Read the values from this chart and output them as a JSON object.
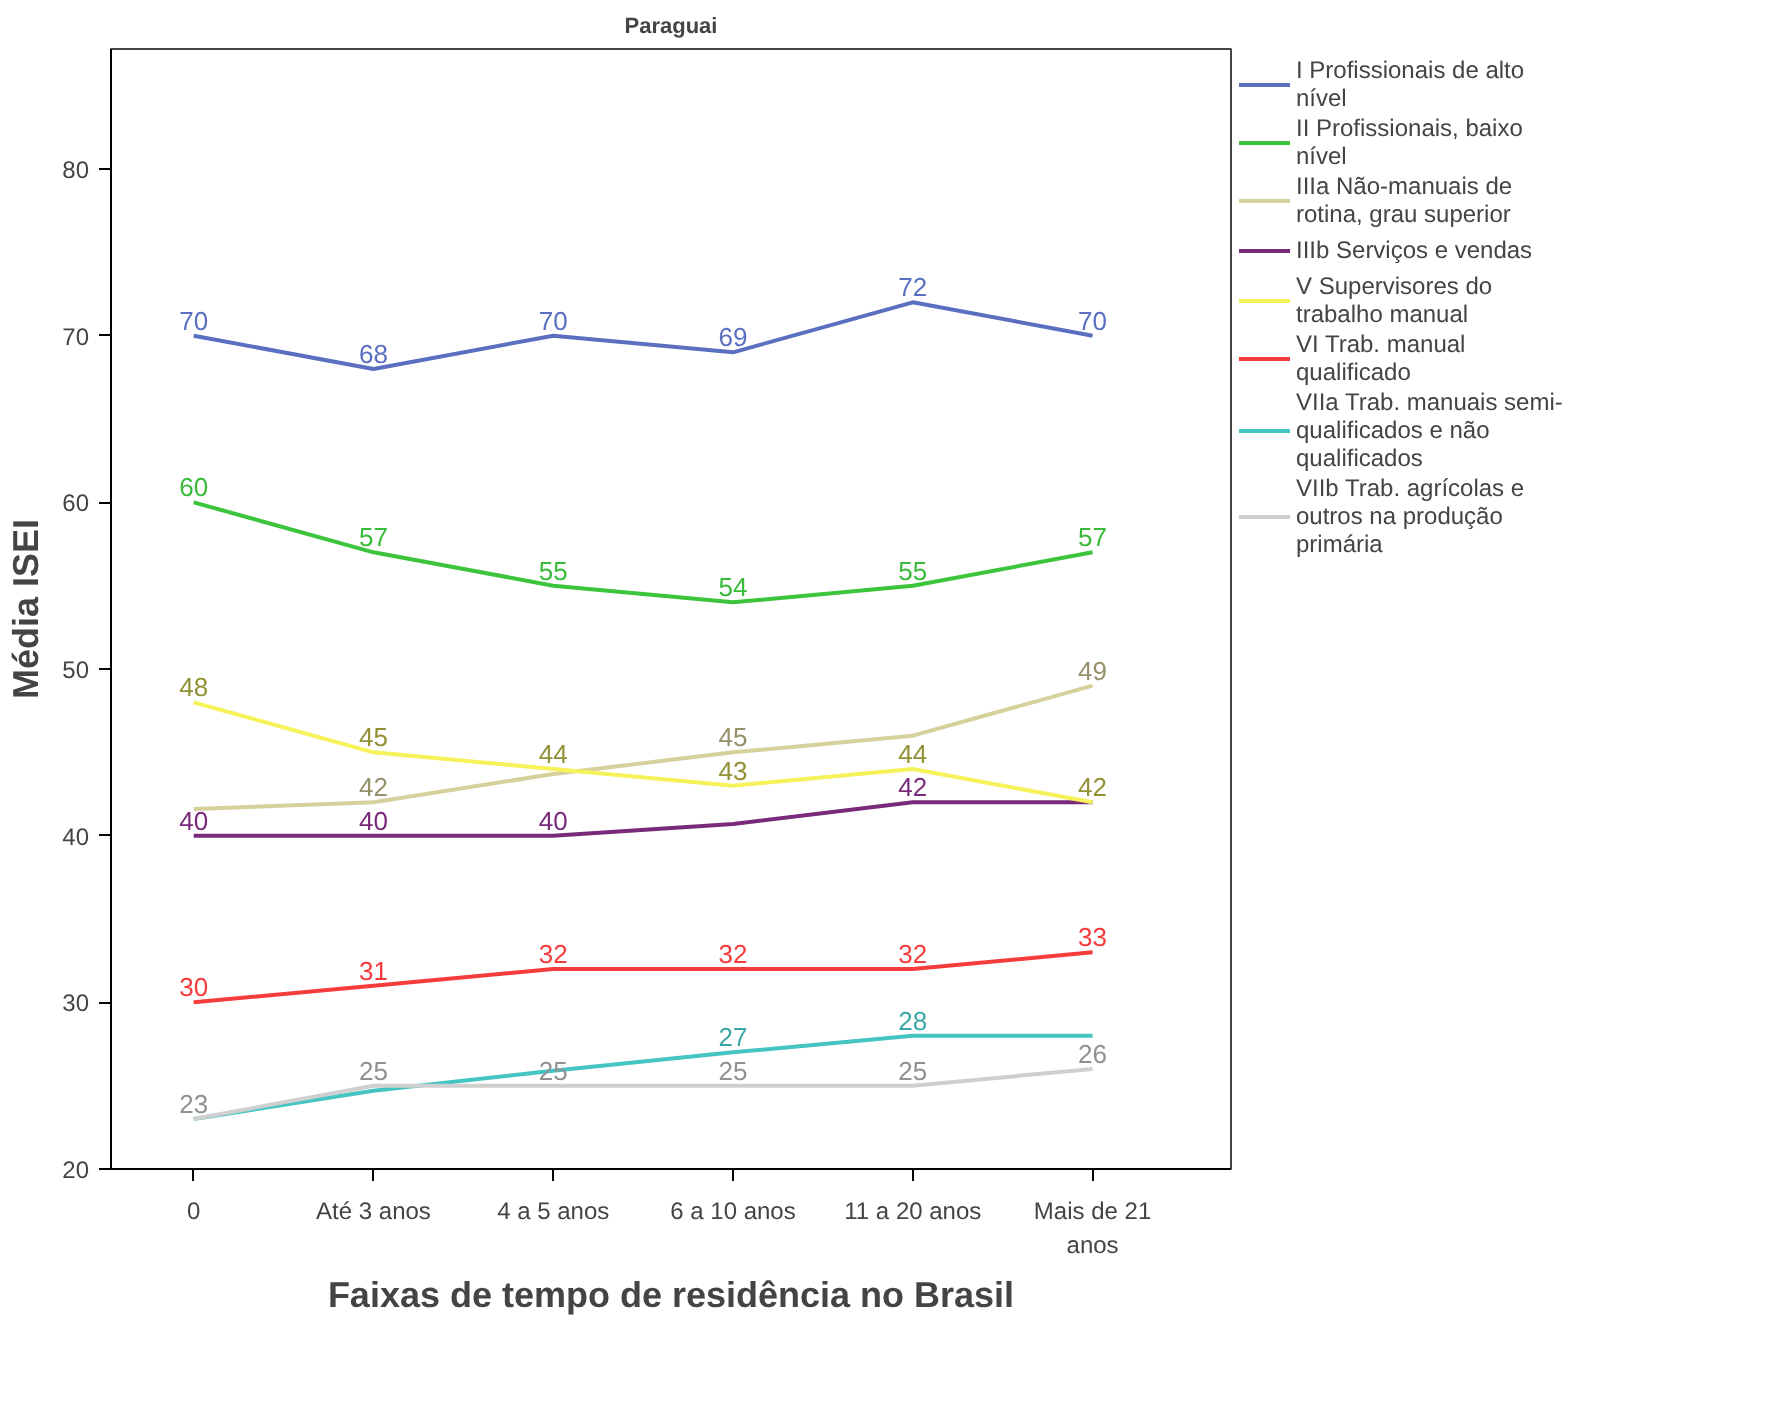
{
  "chart_data": {
    "type": "line",
    "title": "Paraguai",
    "xlabel": "Faixas de tempo de residência no Brasil",
    "ylabel": "Média ISEI",
    "categories": [
      "0",
      "Até 3 anos",
      "4 a 5 anos",
      "6 a 10 anos",
      "11 a 20 anos",
      "Mais de 21 anos"
    ],
    "series": [
      {
        "name": "I Profissionais de alto nível",
        "color": "#5a6fc0",
        "values": [
          70,
          68,
          70,
          69,
          72,
          70
        ],
        "value_labels": [
          "70",
          "68",
          "70",
          "69",
          "72",
          "70"
        ]
      },
      {
        "name": "II Profissionais, baixo nível",
        "color": "#3cc43c",
        "values": [
          60,
          57,
          55,
          54,
          55,
          57
        ],
        "value_labels": [
          "60",
          "57",
          "55",
          "54",
          "55",
          "57"
        ]
      },
      {
        "name": "IIIa Não-manuais de rotina, grau superior",
        "color": "#d6d09a",
        "values": [
          41.6,
          42,
          43.7,
          45,
          46.0,
          49
        ],
        "value_labels": [
          null,
          "42",
          null,
          "45",
          null,
          "49"
        ]
      },
      {
        "name": "IIIb Serviços e vendas",
        "color": "#7a2a7a",
        "values": [
          40,
          40,
          40,
          40.7,
          42,
          42
        ],
        "value_labels": [
          "40",
          "40",
          "40",
          null,
          "42",
          null
        ]
      },
      {
        "name": "V Supervisores do trabalho manual",
        "color": "#f6f25a",
        "values": [
          48,
          45,
          44,
          43,
          44,
          42
        ],
        "value_labels": [
          "48",
          "45",
          "44",
          "43",
          "44",
          "42"
        ]
      },
      {
        "name": "VI Trab. manual qualificado",
        "color": "#f53c3c",
        "values": [
          30,
          31,
          32,
          32,
          32,
          33
        ],
        "value_labels": [
          "30",
          "31",
          "32",
          "32",
          "32",
          "33"
        ]
      },
      {
        "name": "VIIa Trab. manuais semi-qualificados e não qualificados",
        "color": "#45c4c4",
        "values": [
          23.0,
          24.7,
          25.9,
          27,
          28,
          28
        ],
        "value_labels": [
          null,
          null,
          null,
          "27",
          "28",
          null
        ]
      },
      {
        "name": "VIIb Trab. agrícolas e outros na produção primária",
        "color": "#cfcfcf",
        "values": [
          23,
          25,
          25,
          25,
          25,
          26
        ],
        "value_labels": [
          "23",
          "25",
          "25",
          "25",
          "25",
          "26"
        ]
      }
    ],
    "ylim": [
      20,
      87.2
    ],
    "yticks": [
      20,
      30,
      40,
      50,
      60,
      70,
      80
    ],
    "grid": false,
    "legend": "right",
    "marker": "none",
    "line_style": "solid"
  }
}
